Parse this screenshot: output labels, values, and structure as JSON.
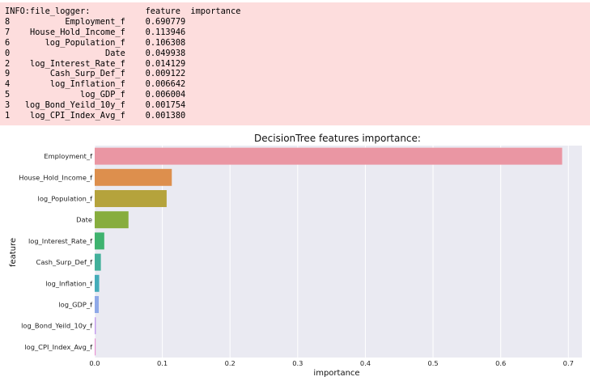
{
  "log": {
    "header_prefix": "INFO:file_logger:",
    "col_feature": "feature",
    "col_importance": "importance",
    "rows": [
      {
        "index": "8",
        "feature": "Employment_f",
        "importance": "0.690779"
      },
      {
        "index": "7",
        "feature": "House_Hold_Income_f",
        "importance": "0.113946"
      },
      {
        "index": "6",
        "feature": "log_Population_f",
        "importance": "0.106308"
      },
      {
        "index": "0",
        "feature": "Date",
        "importance": "0.049938"
      },
      {
        "index": "2",
        "feature": "log_Interest_Rate_f",
        "importance": "0.014129"
      },
      {
        "index": "9",
        "feature": "Cash_Surp_Def_f",
        "importance": "0.009122"
      },
      {
        "index": "4",
        "feature": "log_Inflation_f",
        "importance": "0.006642"
      },
      {
        "index": "5",
        "feature": "log_GDP_f",
        "importance": "0.006004"
      },
      {
        "index": "3",
        "feature": "log_Bond_Yeild_10y_f",
        "importance": "0.001754"
      },
      {
        "index": "1",
        "feature": "log_CPI_Index_Avg_f",
        "importance": "0.001380"
      }
    ]
  },
  "chart_data": {
    "type": "bar",
    "orientation": "horizontal",
    "title": "DecisionTree features importance:",
    "xlabel": "importance",
    "ylabel": "feature",
    "categories": [
      "Employment_f",
      "House_Hold_Income_f",
      "log_Population_f",
      "Date",
      "log_Interest_Rate_f",
      "Cash_Surp_Def_f",
      "log_Inflation_f",
      "log_GDP_f",
      "log_Bond_Yeild_10y_f",
      "log_CPI_Index_Avg_f"
    ],
    "values": [
      0.690779,
      0.113946,
      0.106308,
      0.049938,
      0.014129,
      0.009122,
      0.006642,
      0.006004,
      0.001754,
      0.00138
    ],
    "colors": [
      "#ea96a3",
      "#dd8f4d",
      "#b5a33c",
      "#87ad3e",
      "#3fb36f",
      "#42b09b",
      "#44acb9",
      "#8fa9e8",
      "#c59ded",
      "#e892d2"
    ],
    "xlim": [
      0,
      0.72
    ],
    "xticks": [
      "0.0",
      "0.1",
      "0.2",
      "0.3",
      "0.4",
      "0.5",
      "0.6",
      "0.7"
    ],
    "grid": true,
    "background": "#eaeaf2"
  }
}
